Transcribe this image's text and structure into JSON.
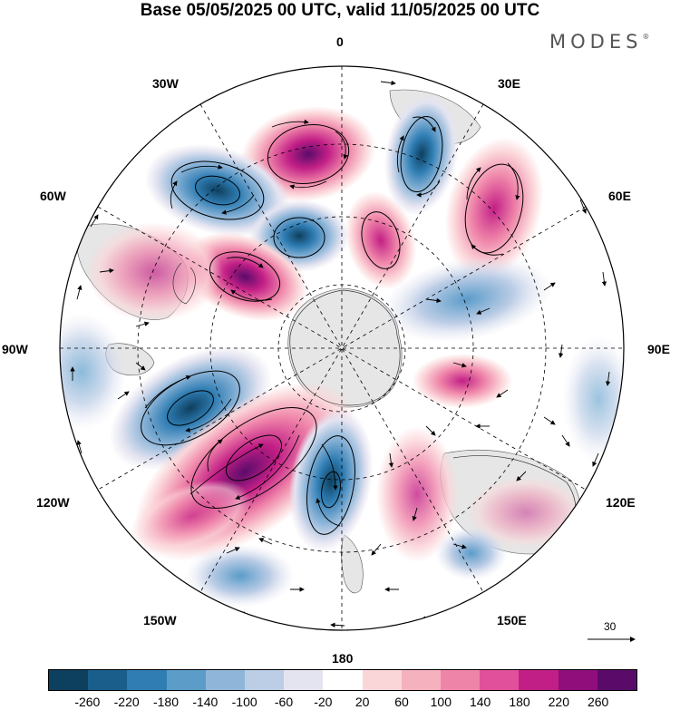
{
  "header": {
    "title": "Base 05/05/2025 00 UTC, valid 11/05/2025 00 UTC"
  },
  "brand": {
    "name": "MODES",
    "mark": "®"
  },
  "map": {
    "projection": "polar-stereographic-south",
    "meridian_labels": [
      {
        "text": "0"
      },
      {
        "text": "30E"
      },
      {
        "text": "60E"
      },
      {
        "text": "90E"
      },
      {
        "text": "120E"
      },
      {
        "text": "150E"
      },
      {
        "text": "180"
      },
      {
        "text": "150W"
      },
      {
        "text": "120W"
      },
      {
        "text": "90W"
      },
      {
        "text": "60W"
      },
      {
        "text": "30W"
      }
    ],
    "reference_vector": {
      "label": "30"
    }
  },
  "colorbar": {
    "colors": [
      "#0d3f5e",
      "#1a5f8c",
      "#2f7db3",
      "#5b9cc9",
      "#8fb6d9",
      "#bccde6",
      "#e4e4f1",
      "#ffffff",
      "#fbd6d9",
      "#f6b1bf",
      "#ef84a9",
      "#e1509a",
      "#c21f86",
      "#8f0e7c",
      "#5a0b6a"
    ],
    "ticks": [
      "-260",
      "-220",
      "-180",
      "-140",
      "-100",
      "-60",
      "-20",
      "20",
      "60",
      "100",
      "140",
      "180",
      "220",
      "260"
    ]
  },
  "anomalies": [
    {
      "name": "negative-anomaly-south-atlantic",
      "sign": "neg"
    },
    {
      "name": "negative-anomaly-south-pacific",
      "sign": "neg"
    },
    {
      "name": "positive-anomaly-pacific-sector",
      "sign": "pos"
    },
    {
      "name": "positive-anomaly-weddell",
      "sign": "pos"
    }
  ]
}
